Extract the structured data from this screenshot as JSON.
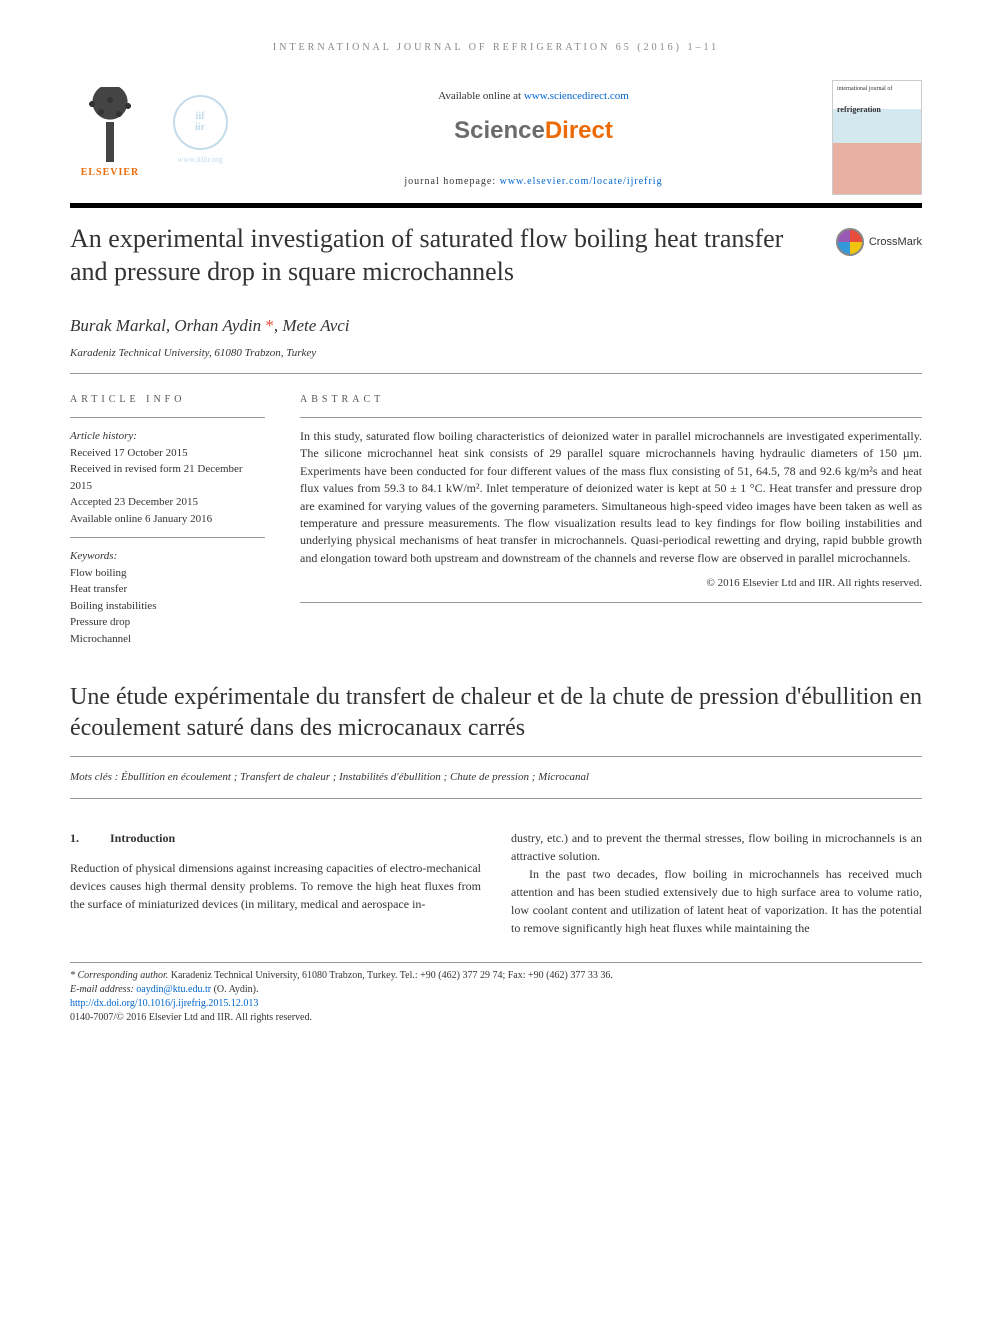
{
  "running_head": "INTERNATIONAL JOURNAL OF REFRIGERATION 65 (2016) 1–11",
  "header": {
    "elsevier_brand": "ELSEVIER",
    "iifiir_lines": [
      "iif",
      "iir"
    ],
    "iifiir_url": "www.iifiir.org",
    "available_prefix": "Available online at ",
    "available_link": "www.sciencedirect.com",
    "sd_science": "Science",
    "sd_direct": "Direct",
    "homepage_prefix": "journal homepage: ",
    "homepage_link": "www.elsevier.com/locate/ijrefrig",
    "journal_cover_small": "international journal of",
    "journal_cover_title": "refrigeration"
  },
  "title": "An experimental investigation of saturated flow boiling heat transfer and pressure drop in square microchannels",
  "crossmark_label": "CrossMark",
  "authors_html": "Burak Markal, Orhan Aydin *, Mete Avci",
  "authors": [
    "Burak Markal",
    "Orhan Aydin",
    "Mete Avci"
  ],
  "affiliation": "Karadeniz Technical University, 61080 Trabzon, Turkey",
  "article_info": {
    "heading": "ARTICLE INFO",
    "history_label": "Article history:",
    "history": [
      "Received 17 October 2015",
      "Received in revised form 21 December 2015",
      "Accepted 23 December 2015",
      "Available online 6 January 2016"
    ],
    "keywords_label": "Keywords:",
    "keywords": [
      "Flow boiling",
      "Heat transfer",
      "Boiling instabilities",
      "Pressure drop",
      "Microchannel"
    ]
  },
  "abstract": {
    "heading": "ABSTRACT",
    "text": "In this study, saturated flow boiling characteristics of deionized water in parallel microchannels are investigated experimentally. The silicone microchannel heat sink consists of 29 parallel square microchannels having hydraulic diameters of 150 µm. Experiments have been conducted for four different values of the mass flux consisting of 51, 64.5, 78 and 92.6 kg/m²s and heat flux values from 59.3 to 84.1 kW/m². Inlet temperature of deionized water is kept at 50 ± 1 °C. Heat transfer and pressure drop are examined for varying values of the governing parameters. Simultaneous high-speed video images have been taken as well as temperature and pressure measurements. The flow visualization results lead to key findings for flow boiling instabilities and underlying physical mechanisms of heat transfer in microchannels. Quasi-periodical rewetting and drying, rapid bubble growth and elongation toward both upstream and downstream of the channels and reverse flow are observed in parallel microchannels.",
    "copyright": "© 2016 Elsevier Ltd and IIR. All rights reserved."
  },
  "french": {
    "title": "Une étude expérimentale du transfert de chaleur et de la chute de pression d'ébullition en écoulement saturé dans des microcanaux carrés",
    "mots_cles_label": "Mots clés : ",
    "mots_cles": "Ébullition en écoulement ; Transfert de chaleur ; Instabilités d'ébullition ; Chute de pression ; Microcanal"
  },
  "body": {
    "section_number": "1.",
    "section_title": "Introduction",
    "col1_p1": "Reduction of physical dimensions against increasing capacities of electro-mechanical devices causes high thermal density problems. To remove the high heat fluxes from the surface of miniaturized devices (in military, medical and aerospace in-",
    "col2_p1": "dustry, etc.) and to prevent the thermal stresses, flow boiling in microchannels is an attractive solution.",
    "col2_p2": "In the past two decades, flow boiling in microchannels has received much attention and has been studied extensively due to high surface area to volume ratio, low coolant content and utilization of latent heat of vaporization. It has the potential to remove significantly high heat fluxes while maintaining the"
  },
  "footer": {
    "corr_label": "* Corresponding author. ",
    "corr_text": "Karadeniz Technical University, 61080 Trabzon, Turkey. Tel.: +90 (462) 377 29 74; Fax: +90 (462) 377 33 36.",
    "email_label": "E-mail address: ",
    "email": "oaydin@ktu.edu.tr",
    "email_name": " (O. Aydin).",
    "doi": "http://dx.doi.org/10.1016/j.ijrefrig.2015.12.013",
    "issn_line": "0140-7007/© 2016 Elsevier Ltd and IIR. All rights reserved."
  },
  "colors": {
    "link": "#0066cc",
    "elsevier_orange": "#ed6b06",
    "text": "#333333",
    "rule": "#999999"
  }
}
